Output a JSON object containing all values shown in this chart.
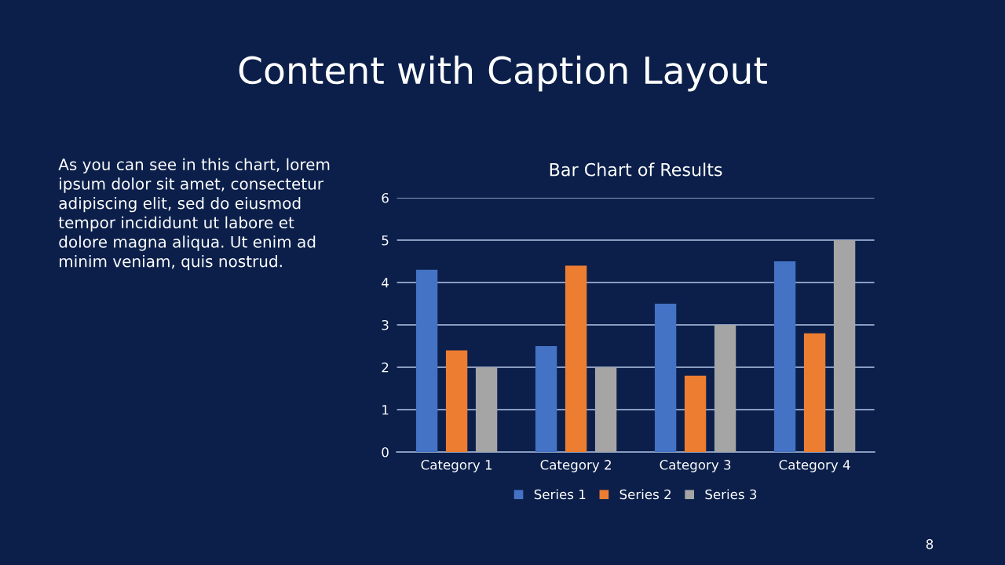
{
  "chart_data": {
    "type": "bar",
    "title": "Content with Caption Layout",
    "subtitle": "Bar Chart of Results",
    "annotations": [
      "As you can see in this chart, lorem\nipsum dolor sit amet, consectetur\nadipiscing elit, sed do eiusmod\ntempor incididunt ut labore et\ndolore magna aliqua. Ut enim ad\nminim veniam, quis nostrud.",
      "8"
    ],
    "categories": [
      "Category 1",
      "Category 2",
      "Category 3",
      "Category 4"
    ],
    "series": [
      {
        "name": "Series 1",
        "color": "#4472c4",
        "values": [
          4.3,
          2.5,
          3.5,
          4.5
        ]
      },
      {
        "name": "Series 2",
        "color": "#ed7d31",
        "values": [
          2.4,
          4.4,
          1.8,
          2.8
        ]
      },
      {
        "name": "Series 3",
        "color": "#a5a5a5",
        "values": [
          2,
          2,
          3,
          5
        ]
      }
    ],
    "ylim": [
      0,
      6
    ],
    "yticks": [
      0,
      1,
      2,
      3,
      4,
      5,
      6
    ],
    "grid": "y",
    "legend": "bottom"
  }
}
